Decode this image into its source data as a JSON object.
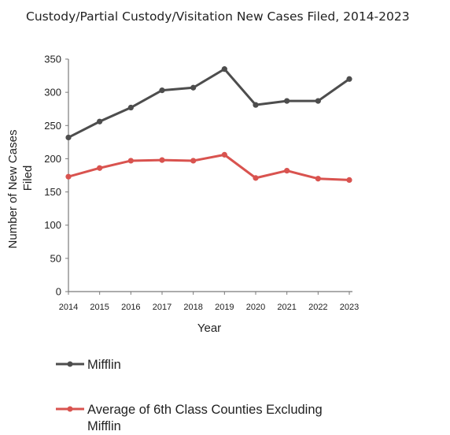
{
  "chart_data": {
    "type": "line",
    "title": "Custody/Partial Custody/Visitation New Cases Filed, 2014-2023",
    "xlabel": "Year",
    "ylabel_line1": "Number of New Cases",
    "ylabel_line2": "Filed",
    "x": [
      "2014",
      "2015",
      "2016",
      "2017",
      "2018",
      "2019",
      "2020",
      "2021",
      "2022",
      "2023"
    ],
    "ylim": [
      0,
      350
    ],
    "yticks": [
      "0",
      "50",
      "100",
      "150",
      "200",
      "250",
      "300",
      "350"
    ],
    "grid": false,
    "legend_position": "bottom-left",
    "series": [
      {
        "name": "Mifflin",
        "color": "#4d4d4d",
        "values": [
          232,
          256,
          277,
          303,
          307,
          335,
          281,
          287,
          287,
          320
        ]
      },
      {
        "name_line1": "Average of 6th Class Counties Excluding",
        "name_line2": "Mifflin",
        "color": "#d9534f",
        "values": [
          173,
          186,
          197,
          198,
          197,
          206,
          171,
          182,
          170,
          168
        ]
      }
    ]
  }
}
